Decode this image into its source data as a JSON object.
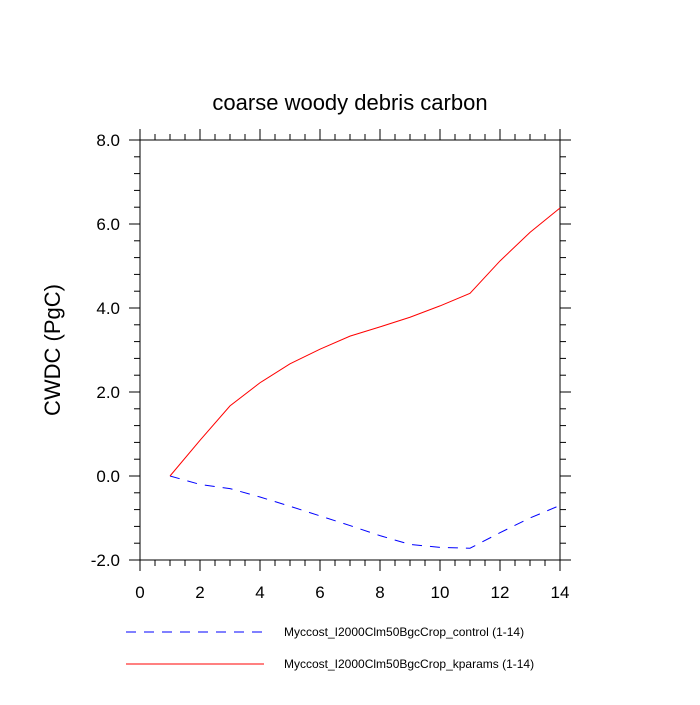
{
  "chart_data": {
    "type": "line",
    "title": "coarse woody debris carbon",
    "xlabel": "",
    "ylabel": "CWDC  (PgC)",
    "xlim": [
      0,
      14
    ],
    "ylim": [
      -2.0,
      8.0
    ],
    "x_ticks": [
      0,
      2,
      4,
      6,
      8,
      10,
      12,
      14
    ],
    "x_tick_labels": [
      "0",
      "2",
      "4",
      "6",
      "8",
      "10",
      "12",
      "14"
    ],
    "y_ticks": [
      -2.0,
      0.0,
      2.0,
      4.0,
      6.0,
      8.0
    ],
    "y_tick_labels": [
      "-2.0",
      "0.0",
      "2.0",
      "4.0",
      "6.0",
      "8.0"
    ],
    "grid": false,
    "legend_position": "bottom",
    "series": [
      {
        "name": "Myccost_I2000Clm50BgcCrop_control (1-14)",
        "color": "#0000ff",
        "style": "dashed",
        "x": [
          1,
          2,
          3,
          4,
          5,
          6,
          7,
          8,
          9,
          10,
          11,
          12,
          13,
          14
        ],
        "y": [
          0.0,
          -0.2,
          -0.3,
          -0.5,
          -0.72,
          -0.95,
          -1.18,
          -1.42,
          -1.63,
          -1.7,
          -1.72,
          -1.35,
          -1.0,
          -0.7
        ]
      },
      {
        "name": "Myccost_I2000Clm50BgcCrop_kparams (1-14)",
        "color": "#ff0000",
        "style": "solid",
        "x": [
          1,
          2,
          3,
          4,
          5,
          6,
          7,
          8,
          9,
          10,
          11,
          12,
          13,
          14
        ],
        "y": [
          0.0,
          0.85,
          1.67,
          2.22,
          2.67,
          3.02,
          3.33,
          3.55,
          3.78,
          4.05,
          4.35,
          5.12,
          5.8,
          6.38
        ]
      }
    ]
  }
}
